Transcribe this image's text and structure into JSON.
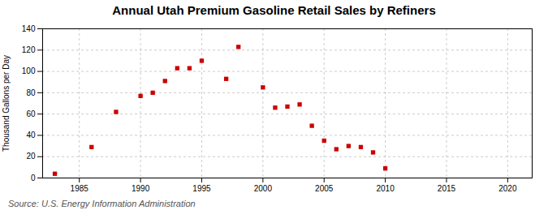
{
  "chart_data": {
    "type": "scatter",
    "title": "Annual Utah Premium Gasoline Retail Sales by Refiners",
    "ylabel": "Thousand Gallons per Day",
    "annotations": [
      "Source: U.S. Energy Information Administration"
    ],
    "x": [
      1983,
      1986,
      1988,
      1990,
      1991,
      1992,
      1993,
      1994,
      1995,
      1997,
      1998,
      2000,
      2001,
      2002,
      2003,
      2004,
      2005,
      2006,
      2007,
      2008,
      2009,
      2010
    ],
    "values": [
      4,
      29,
      62,
      77,
      80,
      91,
      103,
      103,
      110,
      93,
      123,
      85,
      66,
      67,
      69,
      49,
      35,
      27,
      30,
      29,
      24,
      9
    ],
    "color": "#cc0000",
    "marker": "square",
    "xlim": [
      1982,
      2022
    ],
    "ylim": [
      0,
      140
    ],
    "xticks": [
      1985,
      1990,
      1995,
      2000,
      2005,
      2010,
      2015,
      2020
    ],
    "yticks": [
      0,
      20,
      40,
      60,
      80,
      100,
      120,
      140
    ],
    "grid": true
  }
}
